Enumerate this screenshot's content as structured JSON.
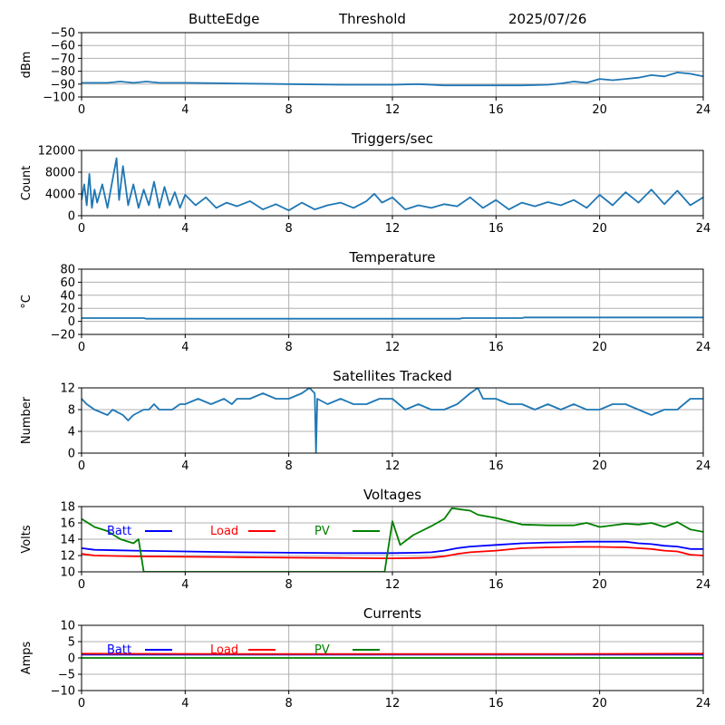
{
  "header": {
    "site": "ButteEdge",
    "label": "Threshold",
    "date": "2025/07/26"
  },
  "colors": {
    "series_blue": "#1f77b4",
    "batt": "#0000ff",
    "load": "#ff0000",
    "pv": "#008000",
    "grid": "#b0b0b0"
  },
  "chart_data": [
    {
      "id": "threshold",
      "type": "line",
      "title": "",
      "xlabel": "",
      "ylabel": "dBm",
      "xlim": [
        0,
        24
      ],
      "ylim": [
        -100,
        -50
      ],
      "xticks": [
        "0",
        "4",
        "8",
        "12",
        "16",
        "20",
        "24"
      ],
      "yticks": [
        "−100",
        "−90",
        "−80",
        "−70",
        "−60",
        "−50"
      ],
      "grid": true,
      "series": [
        {
          "color": "#1f77b4",
          "x": [
            0,
            1,
            1.5,
            2,
            2.5,
            3,
            4,
            6,
            8,
            10,
            12,
            13,
            14,
            16,
            17,
            18,
            18.5,
            19,
            19.5,
            20,
            20.5,
            21,
            21.5,
            22,
            22.5,
            23,
            23.5,
            24
          ],
          "y": [
            -89,
            -89,
            -88,
            -89,
            -88,
            -89,
            -89,
            -89.5,
            -90,
            -90.5,
            -90.5,
            -90,
            -91,
            -91,
            -91,
            -90.5,
            -89.5,
            -88,
            -89,
            -86,
            -87,
            -86,
            -85,
            -83,
            -84,
            -81,
            -82,
            -84
          ]
        }
      ]
    },
    {
      "id": "triggers",
      "type": "line",
      "title": "Triggers/sec",
      "xlabel": "",
      "ylabel": "Count",
      "xlim": [
        0,
        24
      ],
      "ylim": [
        0,
        12500
      ],
      "xticks": [
        "0",
        "4",
        "8",
        "12",
        "16",
        "20",
        "24"
      ],
      "yticks": [
        "0",
        "4000",
        "8000",
        "12000"
      ],
      "grid": true,
      "series": [
        {
          "color": "#1f77b4",
          "x": [
            0,
            0.1,
            0.2,
            0.3,
            0.4,
            0.5,
            0.6,
            0.8,
            1.0,
            1.2,
            1.35,
            1.45,
            1.6,
            1.8,
            2.0,
            2.2,
            2.4,
            2.6,
            2.8,
            3.0,
            3.2,
            3.4,
            3.6,
            3.8,
            4.0,
            4.4,
            4.8,
            5.2,
            5.6,
            6.0,
            6.5,
            7.0,
            7.5,
            8.0,
            8.5,
            9.0,
            9.5,
            10.0,
            10.5,
            11.0,
            11.3,
            11.6,
            12.0,
            12.5,
            13.0,
            13.5,
            14.0,
            14.5,
            15.0,
            15.5,
            16.0,
            16.5,
            17.0,
            17.5,
            18.0,
            18.5,
            19.0,
            19.5,
            20.0,
            20.5,
            21.0,
            21.5,
            22.0,
            22.5,
            23.0,
            23.5,
            24.0
          ],
          "y": [
            3000,
            6000,
            2000,
            8000,
            1500,
            5000,
            2500,
            6000,
            1500,
            7000,
            11000,
            3000,
            9500,
            2000,
            6000,
            1500,
            5000,
            2000,
            6500,
            1500,
            5500,
            2000,
            4500,
            1500,
            4000,
            2000,
            3500,
            1500,
            2500,
            1800,
            2800,
            1200,
            2200,
            1000,
            2500,
            1200,
            2000,
            2500,
            1500,
            2800,
            4200,
            2500,
            3500,
            1200,
            2000,
            1500,
            2200,
            1800,
            3500,
            1500,
            3000,
            1200,
            2500,
            1800,
            2600,
            2000,
            3000,
            1500,
            4000,
            2000,
            4500,
            2500,
            5000,
            2200,
            4800,
            2000,
            3500
          ]
        }
      ]
    },
    {
      "id": "temperature",
      "type": "line",
      "title": "Temperature",
      "xlabel": "",
      "ylabel": "°C",
      "xlim": [
        0,
        24
      ],
      "ylim": [
        -20,
        80
      ],
      "xticks": [
        "0",
        "4",
        "8",
        "12",
        "16",
        "20",
        "24"
      ],
      "yticks": [
        "−20",
        "0",
        "20",
        "40",
        "60",
        "80"
      ],
      "grid": true,
      "series": [
        {
          "color": "#1f77b4",
          "x": [
            0,
            2.4,
            2.5,
            14.6,
            14.7,
            17.0,
            17.1,
            24
          ],
          "y": [
            5,
            5,
            4,
            4,
            5,
            5,
            6,
            6
          ]
        }
      ]
    },
    {
      "id": "satellites",
      "type": "line",
      "title": "Satellites Tracked",
      "xlabel": "",
      "ylabel": "Number",
      "xlim": [
        0,
        24
      ],
      "ylim": [
        0,
        12
      ],
      "xticks": [
        "0",
        "4",
        "8",
        "12",
        "16",
        "20",
        "24"
      ],
      "yticks": [
        "0",
        "4",
        "8",
        "12"
      ],
      "grid": true,
      "series": [
        {
          "color": "#1f77b4",
          "x": [
            0,
            0.2,
            0.5,
            1.0,
            1.2,
            1.6,
            1.8,
            2.0,
            2.4,
            2.6,
            2.8,
            3.0,
            3.5,
            3.8,
            4.0,
            4.5,
            5.0,
            5.5,
            5.8,
            6.0,
            6.5,
            7.0,
            7.5,
            8.0,
            8.5,
            8.8,
            9.0,
            9.05,
            9.1,
            9.5,
            10.0,
            10.5,
            11.0,
            11.5,
            12.0,
            12.5,
            13.0,
            13.5,
            14.0,
            14.5,
            15.0,
            15.3,
            15.5,
            16.0,
            16.5,
            17.0,
            17.5,
            18.0,
            18.5,
            19.0,
            19.5,
            20.0,
            20.5,
            21.0,
            21.5,
            22.0,
            22.5,
            23.0,
            23.5,
            24.0
          ],
          "y": [
            10,
            9,
            8,
            7,
            8,
            7,
            6,
            7,
            8,
            8,
            9,
            8,
            8,
            9,
            9,
            10,
            9,
            10,
            9,
            10,
            10,
            11,
            10,
            10,
            11,
            12,
            11,
            0,
            10,
            9,
            10,
            9,
            9,
            10,
            10,
            8,
            9,
            8,
            8,
            9,
            11,
            12,
            10,
            10,
            9,
            9,
            8,
            9,
            8,
            9,
            8,
            8,
            9,
            9,
            8,
            7,
            8,
            8,
            10,
            10
          ]
        }
      ]
    },
    {
      "id": "voltages",
      "type": "line",
      "title": "Voltages",
      "xlabel": "",
      "ylabel": "Volts",
      "xlim": [
        0,
        24
      ],
      "ylim": [
        10,
        18
      ],
      "xticks": [
        "0",
        "4",
        "8",
        "12",
        "16",
        "20",
        "24"
      ],
      "yticks": [
        "10",
        "12",
        "14",
        "16",
        "18"
      ],
      "grid": true,
      "legend": [
        "Batt",
        "Load",
        "PV"
      ],
      "series": [
        {
          "name": "Batt",
          "color": "#0000ff",
          "x": [
            0,
            0.5,
            2,
            4,
            6,
            8,
            10,
            12,
            13,
            13.5,
            14,
            14.5,
            15,
            16,
            17,
            18,
            19,
            19.5,
            20,
            21,
            21.5,
            22,
            22.5,
            23,
            23.5,
            24
          ],
          "y": [
            12.9,
            12.7,
            12.6,
            12.5,
            12.4,
            12.35,
            12.3,
            12.3,
            12.35,
            12.4,
            12.6,
            12.9,
            13.1,
            13.3,
            13.5,
            13.6,
            13.65,
            13.7,
            13.7,
            13.7,
            13.5,
            13.4,
            13.2,
            13.1,
            12.8,
            12.8
          ]
        },
        {
          "name": "Load",
          "color": "#ff0000",
          "x": [
            0,
            0.5,
            2,
            4,
            6,
            8,
            10,
            12,
            13,
            13.5,
            14,
            14.5,
            15,
            16,
            17,
            18,
            19,
            20,
            21,
            21.5,
            22,
            22.5,
            23,
            23.5,
            24
          ],
          "y": [
            12.2,
            12.0,
            11.9,
            11.85,
            11.8,
            11.75,
            11.7,
            11.65,
            11.7,
            11.75,
            11.9,
            12.2,
            12.4,
            12.6,
            12.9,
            13.0,
            13.05,
            13.05,
            13.0,
            12.9,
            12.8,
            12.6,
            12.5,
            12.1,
            12.0
          ]
        },
        {
          "name": "PV",
          "color": "#008000",
          "x": [
            0,
            0.5,
            1.0,
            1.5,
            2.0,
            2.2,
            2.4,
            11.7,
            12.0,
            12.3,
            12.8,
            13.5,
            14.0,
            14.3,
            15.0,
            15.3,
            16.0,
            17.0,
            18.0,
            19.0,
            19.5,
            20.0,
            21.0,
            21.5,
            22.0,
            22.5,
            23.0,
            23.5,
            24.0
          ],
          "y": [
            16.5,
            15.5,
            15.0,
            14.0,
            13.5,
            14.0,
            10.0,
            10.0,
            16.2,
            13.3,
            14.5,
            15.6,
            16.5,
            17.8,
            17.5,
            17.0,
            16.6,
            15.8,
            15.7,
            15.7,
            16.0,
            15.5,
            15.9,
            15.8,
            16.0,
            15.5,
            16.1,
            15.2,
            14.9
          ]
        }
      ]
    },
    {
      "id": "currents",
      "type": "line",
      "title": "Currents",
      "xlabel": "",
      "ylabel": "Amps",
      "xlim": [
        0,
        24
      ],
      "ylim": [
        -10,
        10
      ],
      "xticks": [
        "0",
        "4",
        "8",
        "12",
        "16",
        "20",
        "24"
      ],
      "yticks": [
        "−10",
        "−5",
        "0",
        "5",
        "10"
      ],
      "grid": true,
      "legend": [
        "Batt",
        "Load",
        "PV"
      ],
      "series": [
        {
          "name": "Batt",
          "color": "#0000ff",
          "x": [
            0,
            24
          ],
          "y": [
            1.0,
            1.0
          ]
        },
        {
          "name": "Load",
          "color": "#ff0000",
          "x": [
            0,
            6,
            12,
            18,
            24
          ],
          "y": [
            1.3,
            1.2,
            1.2,
            1.2,
            1.3
          ]
        },
        {
          "name": "PV",
          "color": "#008000",
          "x": [
            0,
            24
          ],
          "y": [
            0.0,
            0.0
          ]
        }
      ]
    }
  ]
}
